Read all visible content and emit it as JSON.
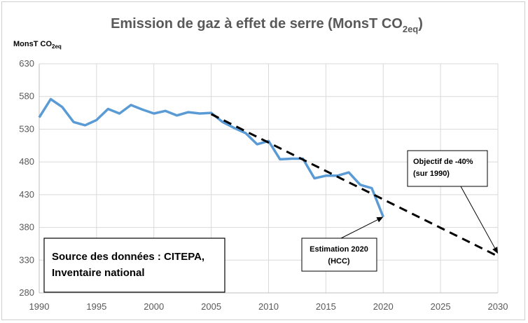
{
  "chart_data": {
    "type": "line",
    "title": "Emission de gaz à effet de serre (MonsT CO",
    "title_subscript": "2eq",
    "title_close": ")",
    "ylabel": "MonsT CO",
    "ylabel_subscript": "2eq",
    "xlim": [
      1990,
      2030
    ],
    "ylim": [
      280,
      630
    ],
    "x_ticks": [
      1990,
      1995,
      2000,
      2005,
      2010,
      2015,
      2020,
      2025,
      2030
    ],
    "y_ticks": [
      280,
      330,
      380,
      430,
      480,
      530,
      580,
      630
    ],
    "grid": true,
    "series": [
      {
        "style": "solid",
        "color": "#5b9bd5",
        "x": [
          1990,
          1991,
          1992,
          1993,
          1994,
          1995,
          1996,
          1997,
          1998,
          1999,
          2000,
          2001,
          2002,
          2003,
          2004,
          2005,
          2006,
          2007,
          2008,
          2009,
          2010,
          2011,
          2012,
          2013,
          2014,
          2015,
          2016,
          2017,
          2018,
          2019,
          2020
        ],
        "y": [
          548,
          576,
          564,
          541,
          536,
          544,
          561,
          554,
          567,
          560,
          554,
          558,
          551,
          556,
          554,
          555,
          541,
          532,
          524,
          507,
          512,
          484,
          485,
          485,
          455,
          459,
          459,
          464,
          445,
          440,
          396
        ]
      },
      {
        "style": "dashed",
        "color": "#000000",
        "x": [
          2005,
          2030
        ],
        "y": [
          553,
          336
        ]
      }
    ],
    "annotations": [
      {
        "id": "source",
        "lines": [
          "Source des données : CITEPA,",
          "Inventaire national"
        ]
      },
      {
        "id": "estimation",
        "lines": [
          "Estimation 2020",
          "(HCC)"
        ],
        "arrow_to": [
          2020,
          396
        ]
      },
      {
        "id": "objectif",
        "lines": [
          "Objectif de -40%",
          "(sur 1990)"
        ],
        "arrow_to": [
          2030,
          340
        ]
      }
    ]
  }
}
